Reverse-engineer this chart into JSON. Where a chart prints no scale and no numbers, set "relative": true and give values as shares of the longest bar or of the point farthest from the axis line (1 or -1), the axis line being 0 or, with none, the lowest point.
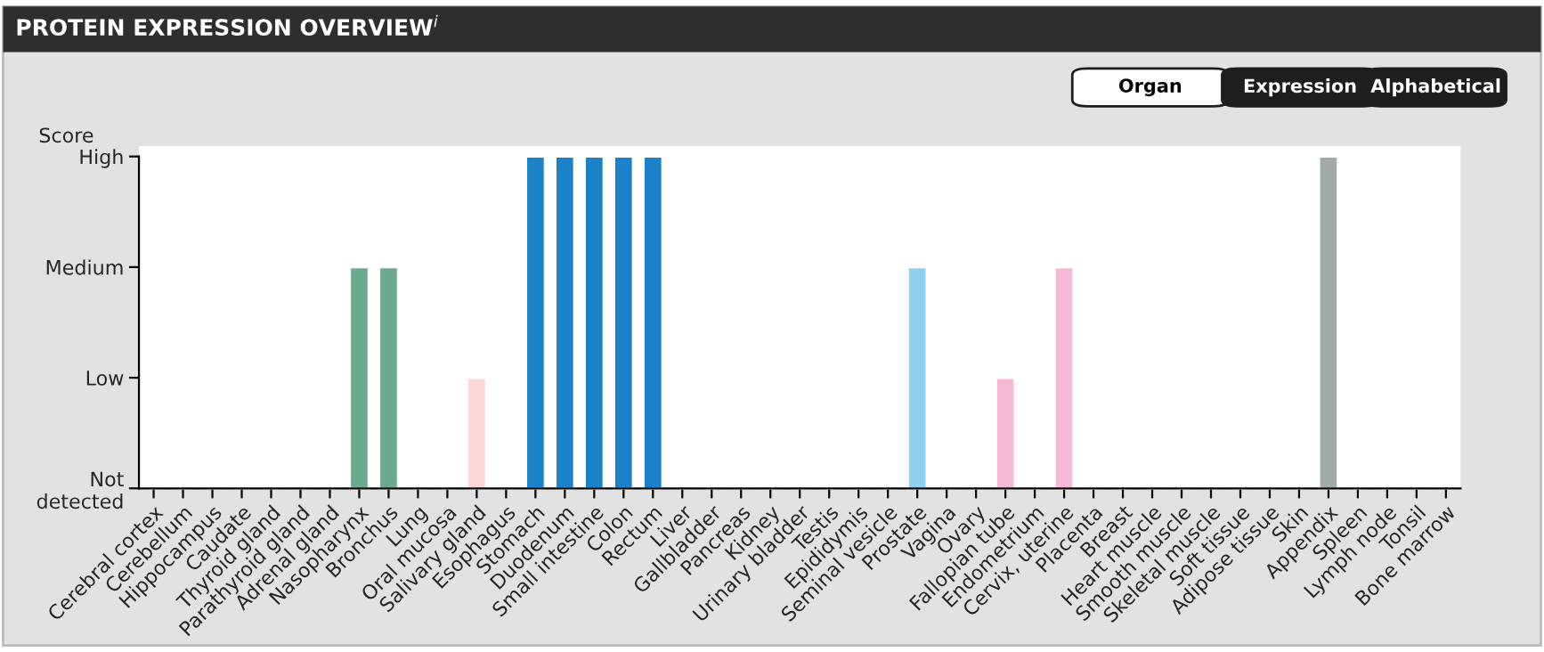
{
  "chart_data": {
    "type": "bar",
    "title": "PROTEIN EXPRESSION OVERVIEW$^{i}$",
    "ylabel": "Score",
    "relative": true,
    "categories": [
      "Cerebral cortex",
      "Cerebellum",
      "Hippocampus",
      "Caudate",
      "Thyroid gland",
      "Parathyroid gland",
      "Adrenal gland",
      "Nasopharynx",
      "Bronchus",
      "Lung",
      "Oral mucosa",
      "Salivary gland",
      "Esophagus",
      "Stomach",
      "Duodenum",
      "Small intestine",
      "Colon",
      "Rectum",
      "Liver",
      "Gallbladder",
      "Pancreas",
      "Kidney",
      "Urinary bladder",
      "Testis",
      "Epididymis",
      "Seminal vesicle",
      "Prostate",
      "Vagina",
      "Ovary",
      "Fallopian tube",
      "Endometrium",
      "Cervix, uterine",
      "Placenta",
      "Breast",
      "Heart muscle",
      "Smooth muscle",
      "Skeletal muscle",
      "Soft tissue",
      "Adipose tissue",
      "Skin",
      "Appendix",
      "Spleen",
      "Lymph node",
      "Tonsil",
      "Bone marrow"
    ],
    "values": [
      0,
      0,
      0,
      0,
      0,
      0,
      0,
      0.667,
      0.667,
      0,
      0,
      0.333,
      0,
      1,
      1,
      1,
      1,
      1,
      0,
      0,
      0,
      0,
      0,
      0,
      0,
      0,
      0.667,
      0,
      0,
      0.333,
      0,
      0.667,
      0,
      0,
      0,
      0,
      0,
      0,
      0,
      0,
      1,
      0,
      0,
      0,
      0
    ],
    "colors": [
      null,
      null,
      null,
      null,
      null,
      null,
      null,
      "#6aab8f",
      "#6aab8f",
      null,
      null,
      "#fdd9d7",
      null,
      "#1b82c9",
      "#1b82c9",
      "#1b82c9",
      "#1b82c9",
      "#1b82c9",
      null,
      null,
      null,
      null,
      null,
      null,
      null,
      null,
      "#8fd0f0",
      null,
      null,
      "#f7b9d5",
      null,
      "#f7b9d5",
      null,
      null,
      null,
      null,
      null,
      null,
      null,
      null,
      "#a3abaa",
      null,
      null,
      null,
      null
    ],
    "annotations": [
      "Not\ndetected",
      "Low",
      "Medium",
      "High",
      "Organ",
      "Expression",
      "Alphabetical"
    ],
    "grid": false,
    "legend": false
  }
}
